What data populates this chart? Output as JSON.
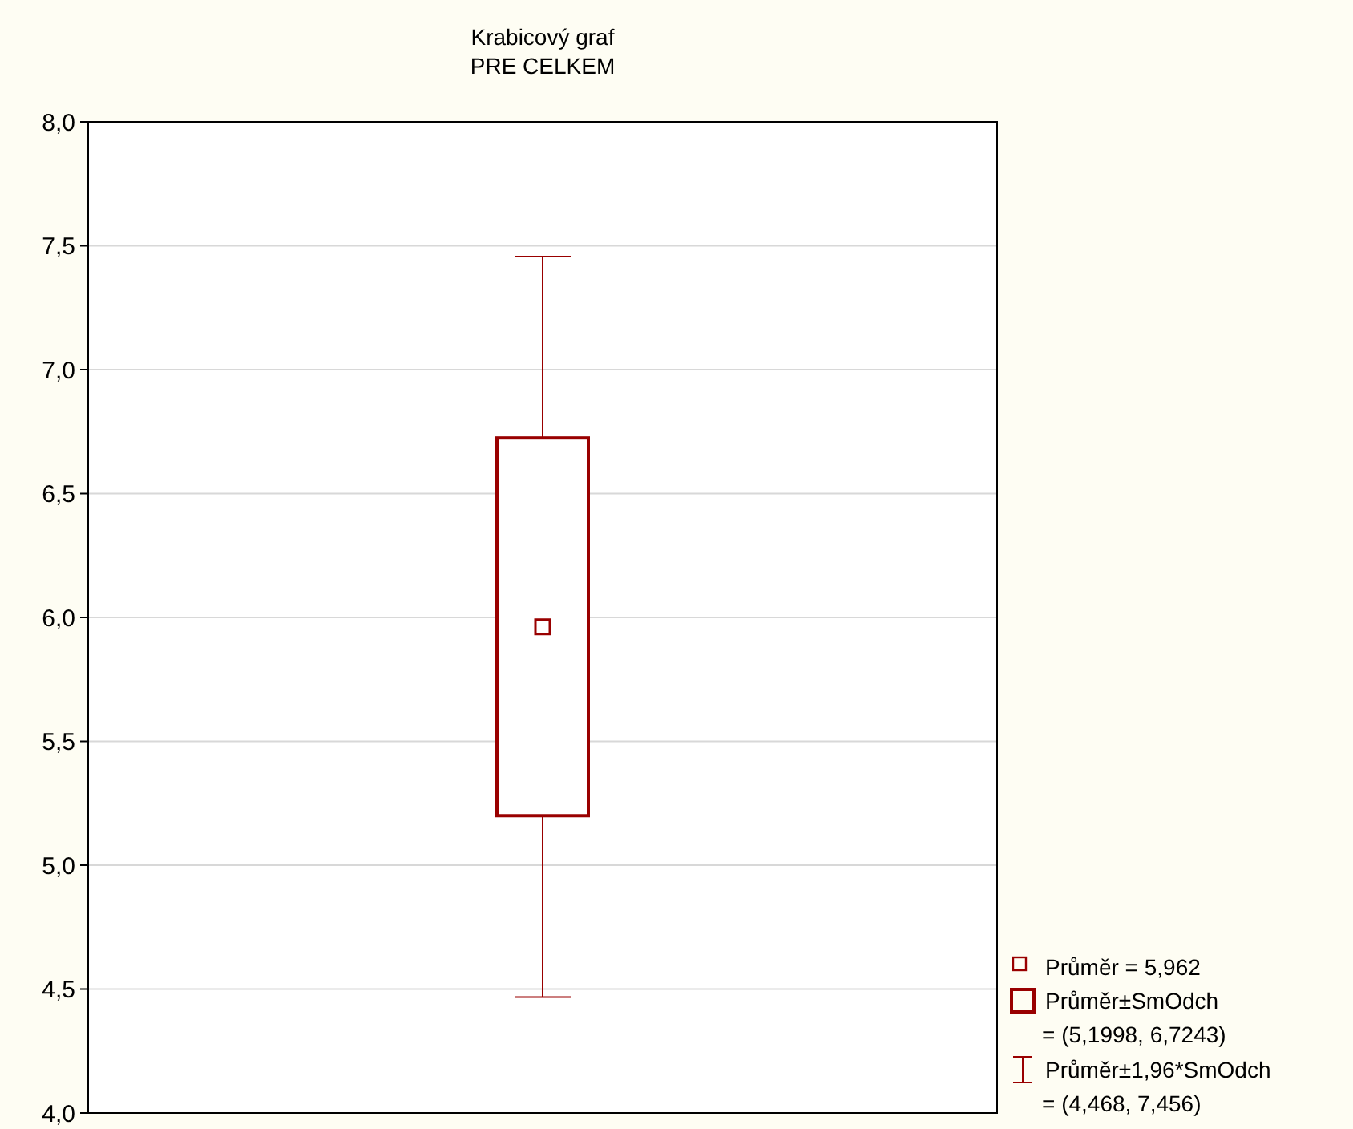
{
  "chart_data": {
    "type": "box",
    "title": "Krabicový graf",
    "subtitle": "PRE CELKEM",
    "categories": [
      null
    ],
    "boxes": [
      {
        "low": 4.468,
        "q1": 5.1998,
        "median": 5.962,
        "q3": 6.7243,
        "high": 7.456
      }
    ],
    "color": "#990000",
    "ylim": [
      4,
      8
    ],
    "yticks": [
      {
        "value": 4,
        "label": "4,0"
      },
      {
        "value": 4.5,
        "label": "4,5"
      },
      {
        "value": 5,
        "label": "5,0"
      },
      {
        "value": 5.5,
        "label": "5,5"
      },
      {
        "value": 6,
        "label": "6,0"
      },
      {
        "value": 6.5,
        "label": "6,5"
      },
      {
        "value": 7,
        "label": "7,0"
      },
      {
        "value": 7.5,
        "label": "7,5"
      },
      {
        "value": 8,
        "label": "8,0"
      }
    ],
    "grid": "y",
    "annotations": [
      "Průměr = 5,962",
      "Průměr±SmOdch",
      "= (5,1998, 6,7243)",
      "Průměr±1,96*SmOdch",
      "= (4,468, 7,456)"
    ]
  }
}
